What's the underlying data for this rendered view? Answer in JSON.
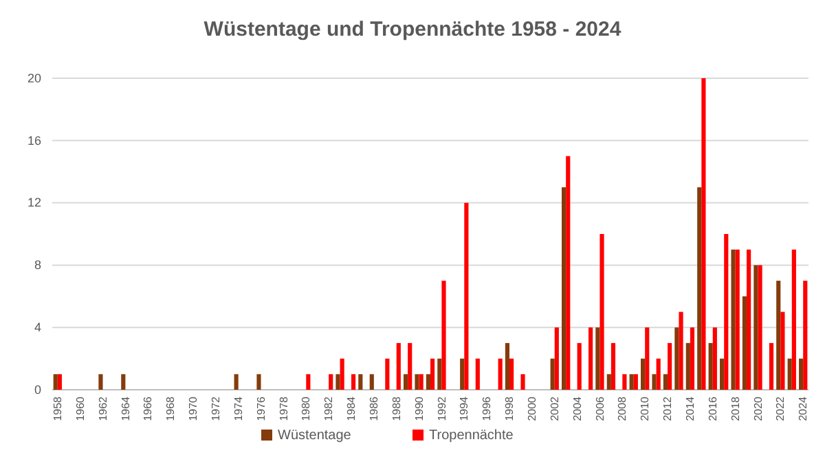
{
  "chart_data": {
    "type": "bar",
    "title": "Wüstentage und Tropennächte 1958 - 2024",
    "categories": [
      "1958",
      null,
      "1960",
      null,
      "1962",
      null,
      "1964",
      null,
      "1966",
      null,
      "1968",
      null,
      "1970",
      null,
      "1972",
      null,
      "1974",
      null,
      "1976",
      null,
      "1978",
      null,
      "1980",
      null,
      "1982",
      null,
      "1984",
      null,
      "1986",
      null,
      "1988",
      null,
      "1990",
      null,
      "1992",
      null,
      "1994",
      null,
      "1996",
      null,
      "1998",
      null,
      "2000",
      null,
      "2002",
      null,
      "2004",
      null,
      "2006",
      null,
      "2008",
      null,
      "2010",
      null,
      "2012",
      null,
      "2014",
      null,
      "2016",
      null,
      "2018",
      null,
      "2020",
      null,
      "2022",
      null,
      "2024"
    ],
    "series": [
      {
        "name": "Wüstentage",
        "color": "#843c0c",
        "values": [
          1,
          0,
          0,
          0,
          1,
          0,
          1,
          0,
          0,
          0,
          0,
          0,
          0,
          0,
          0,
          0,
          1,
          0,
          1,
          0,
          0,
          0,
          0,
          0,
          0,
          1,
          0,
          1,
          1,
          0,
          0,
          1,
          1,
          1,
          2,
          0,
          2,
          0,
          0,
          0,
          3,
          0,
          0,
          0,
          2,
          13,
          0,
          0,
          4,
          1,
          0,
          1,
          2,
          1,
          1,
          4,
          3,
          13,
          3,
          2,
          9,
          6,
          8,
          0,
          7,
          2,
          2
        ]
      },
      {
        "name": "Tropennächte",
        "color": "#ff0000",
        "values": [
          1,
          0,
          0,
          0,
          0,
          0,
          0,
          0,
          0,
          0,
          0,
          0,
          0,
          0,
          0,
          0,
          0,
          0,
          0,
          0,
          0,
          0,
          1,
          0,
          1,
          2,
          1,
          0,
          0,
          2,
          3,
          3,
          1,
          2,
          7,
          0,
          12,
          2,
          0,
          2,
          2,
          1,
          0,
          0,
          4,
          15,
          3,
          4,
          10,
          3,
          1,
          1,
          4,
          2,
          3,
          5,
          4,
          20,
          4,
          10,
          9,
          9,
          8,
          3,
          5,
          9,
          7
        ]
      }
    ],
    "ylim": [
      0,
      20
    ],
    "yticks": [
      0,
      4,
      8,
      12,
      16,
      20
    ],
    "grid": "y",
    "legend": "bottom"
  }
}
